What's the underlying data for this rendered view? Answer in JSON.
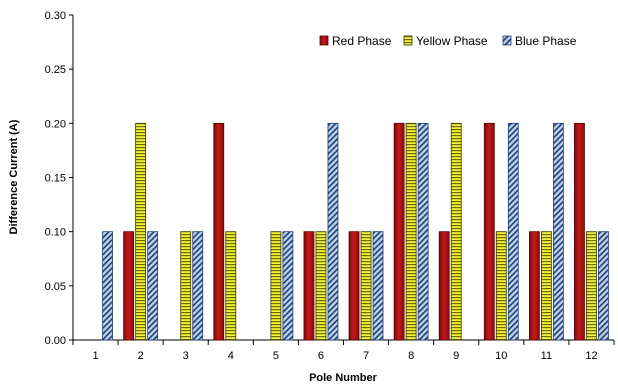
{
  "chart_data": {
    "type": "bar",
    "title": "",
    "xlabel": "Pole Number",
    "ylabel": "Difference Current (A)",
    "categories": [
      "1",
      "2",
      "3",
      "4",
      "5",
      "6",
      "7",
      "8",
      "9",
      "10",
      "11",
      "12"
    ],
    "ylim": [
      0,
      0.3
    ],
    "yticks": [
      "0.00",
      "0.05",
      "0.10",
      "0.15",
      "0.20",
      "0.25",
      "0.30"
    ],
    "grid": false,
    "legend_position": "top-right",
    "series": [
      {
        "name": "Red Phase",
        "color": "#b01616",
        "pattern": "solid",
        "values": [
          null,
          0.1,
          null,
          0.2,
          null,
          0.1,
          0.1,
          0.2,
          0.1,
          0.2,
          0.1,
          0.2
        ]
      },
      {
        "name": "Yellow Phase",
        "color": "#e8e820",
        "pattern": "horizontal-stripes",
        "values": [
          null,
          0.2,
          0.1,
          0.1,
          0.1,
          0.1,
          0.1,
          0.2,
          0.2,
          0.1,
          0.1,
          0.1
        ]
      },
      {
        "name": "Blue Phase",
        "color": "#9fbfe0",
        "pattern": "diagonal-stripes",
        "values": [
          0.1,
          0.1,
          0.1,
          null,
          0.1,
          0.2,
          0.1,
          0.2,
          null,
          0.2,
          0.2,
          0.1
        ]
      }
    ]
  }
}
